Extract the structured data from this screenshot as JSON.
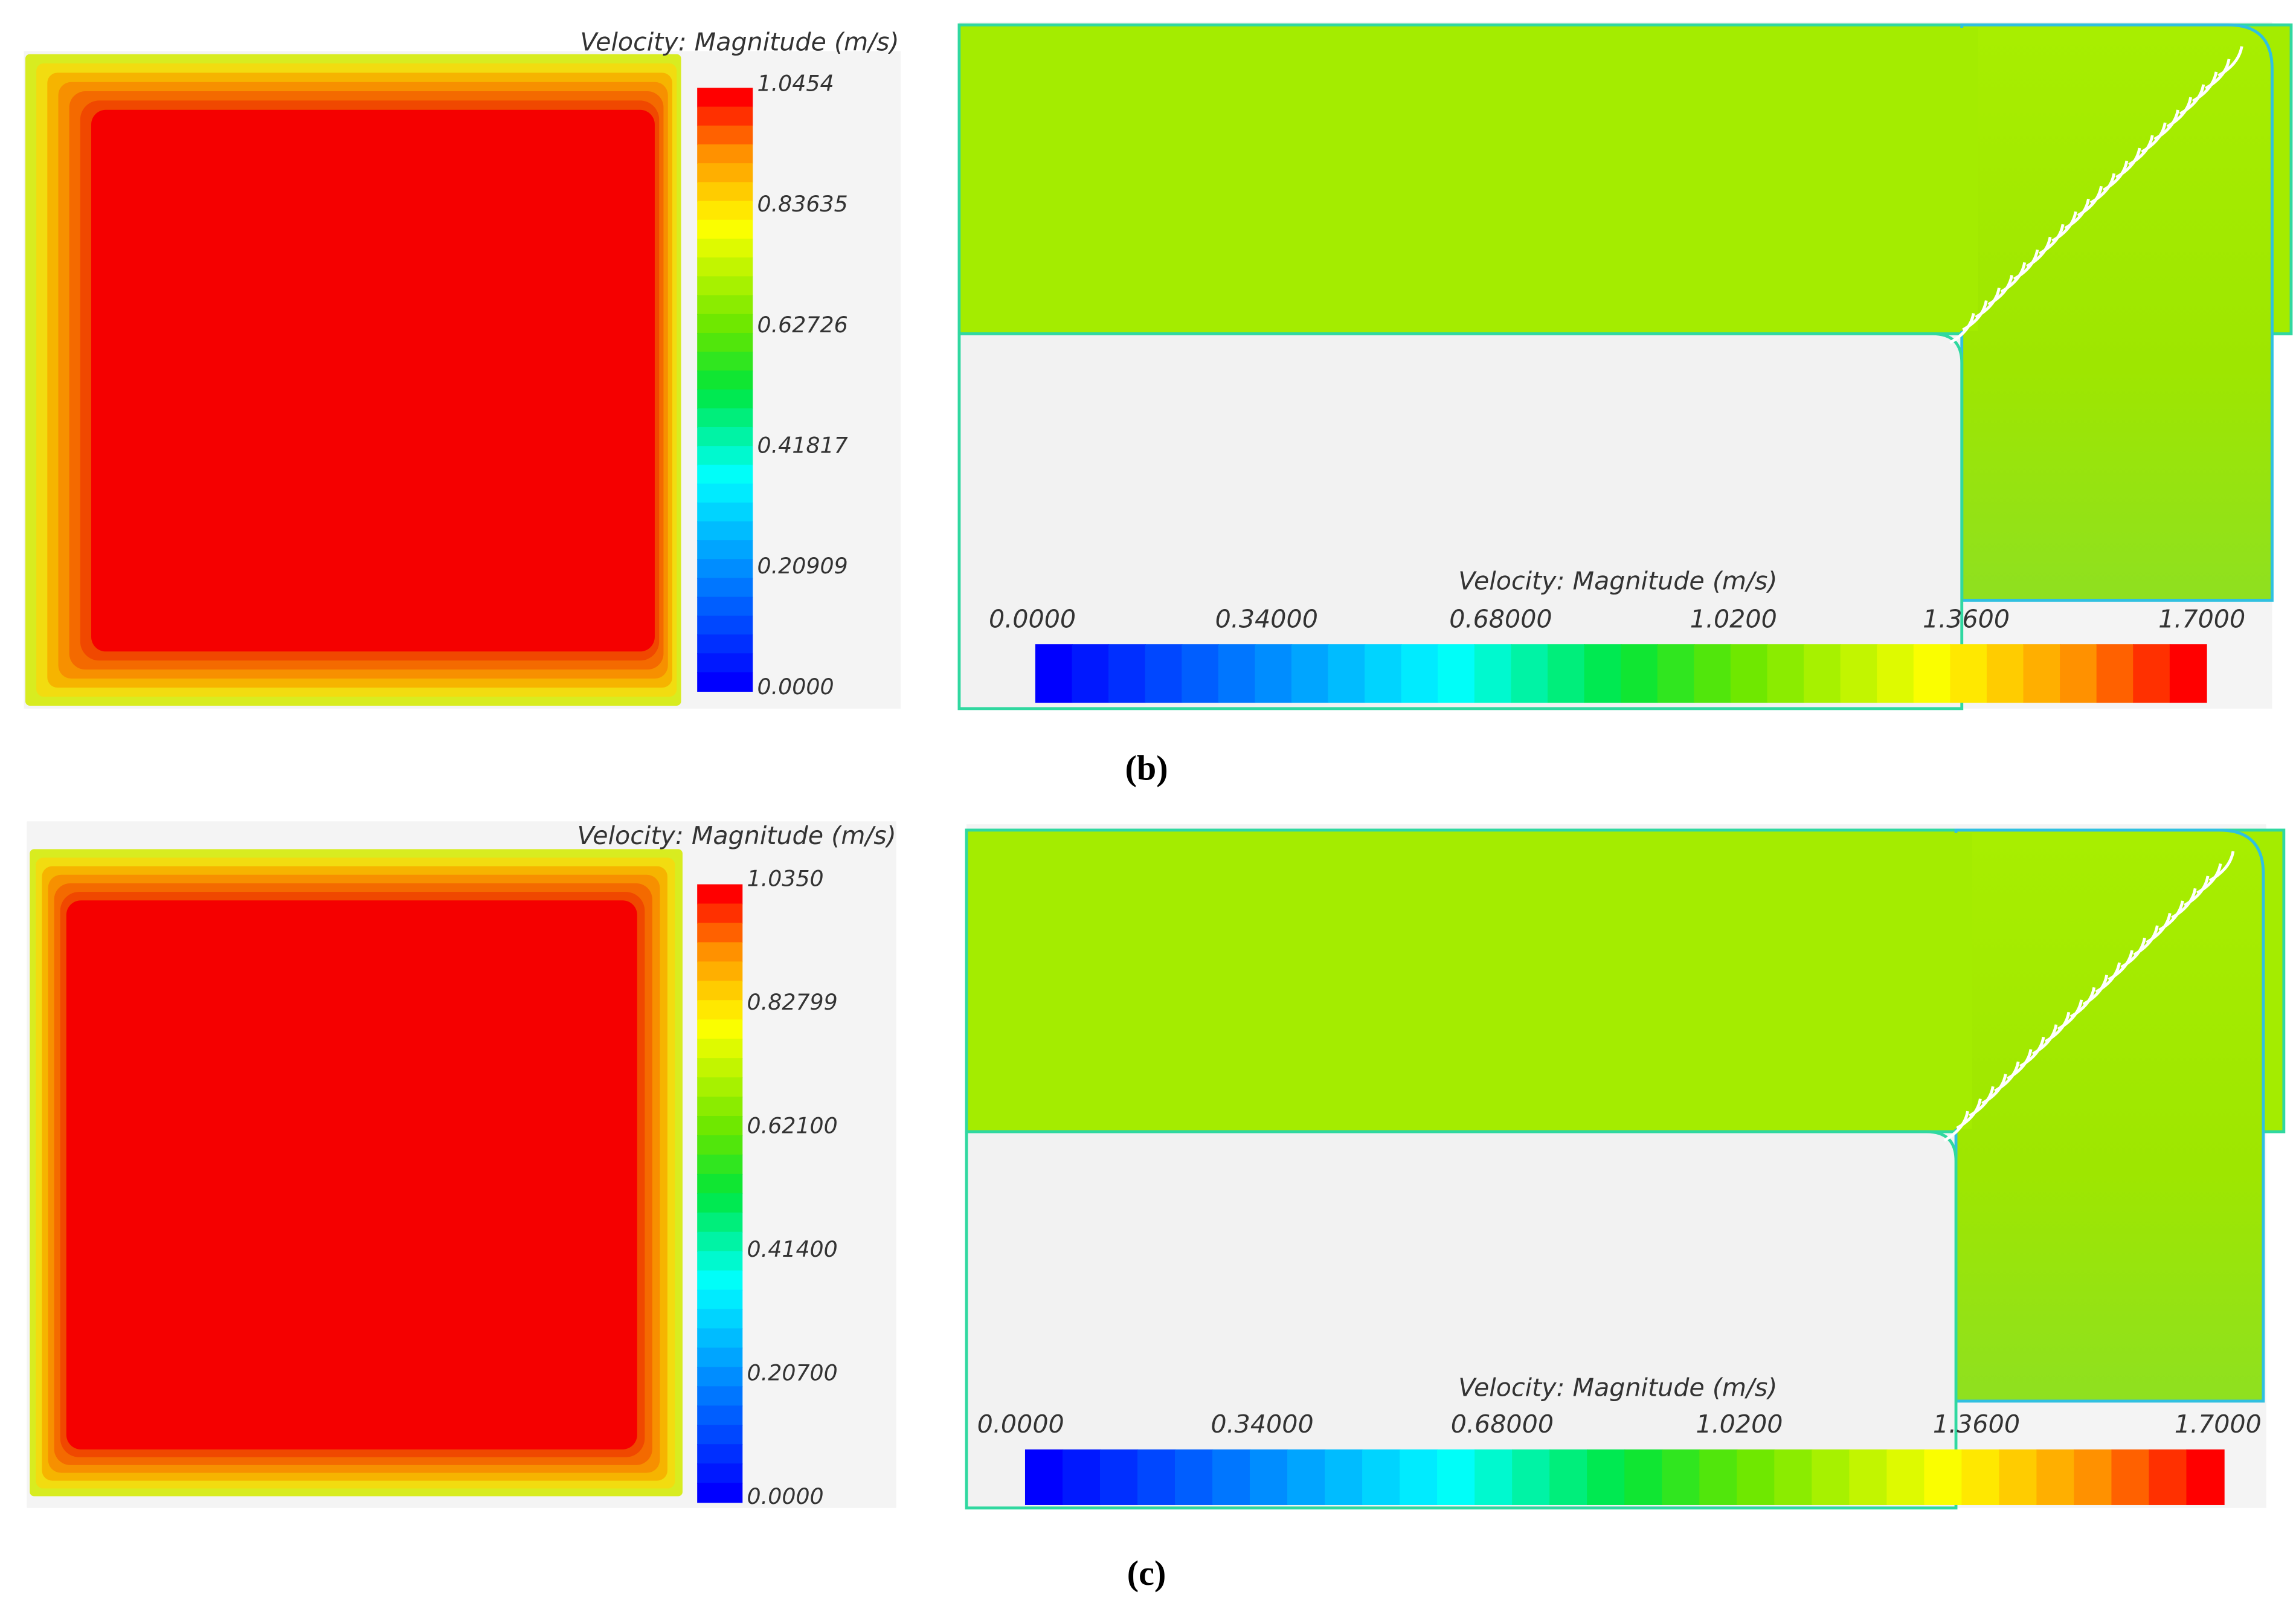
{
  "panels": [
    {
      "label": "(b)",
      "cross_section": {
        "legend_title": "Velocity: Magnitude (m/s)",
        "legend_ticks": [
          "1.0454",
          "0.83635",
          "0.62726",
          "0.41817",
          "0.20909",
          "0.0000"
        ]
      },
      "side_view": {
        "legend_title": "Velocity: Magnitude (m/s)",
        "legend_ticks": [
          "0.0000",
          "0.34000",
          "0.68000",
          "1.0200",
          "1.3600",
          "1.7000"
        ]
      }
    },
    {
      "label": "(c)",
      "cross_section": {
        "legend_title": "Velocity: Magnitude (m/s)",
        "legend_ticks": [
          "1.0350",
          "0.82799",
          "0.62100",
          "0.41400",
          "0.20700",
          "0.0000"
        ]
      },
      "side_view": {
        "legend_title": "Velocity: Magnitude (m/s)",
        "legend_ticks": [
          "0.0000",
          "0.34000",
          "0.68000",
          "1.0200",
          "1.3600",
          "1.7000"
        ]
      }
    }
  ]
}
